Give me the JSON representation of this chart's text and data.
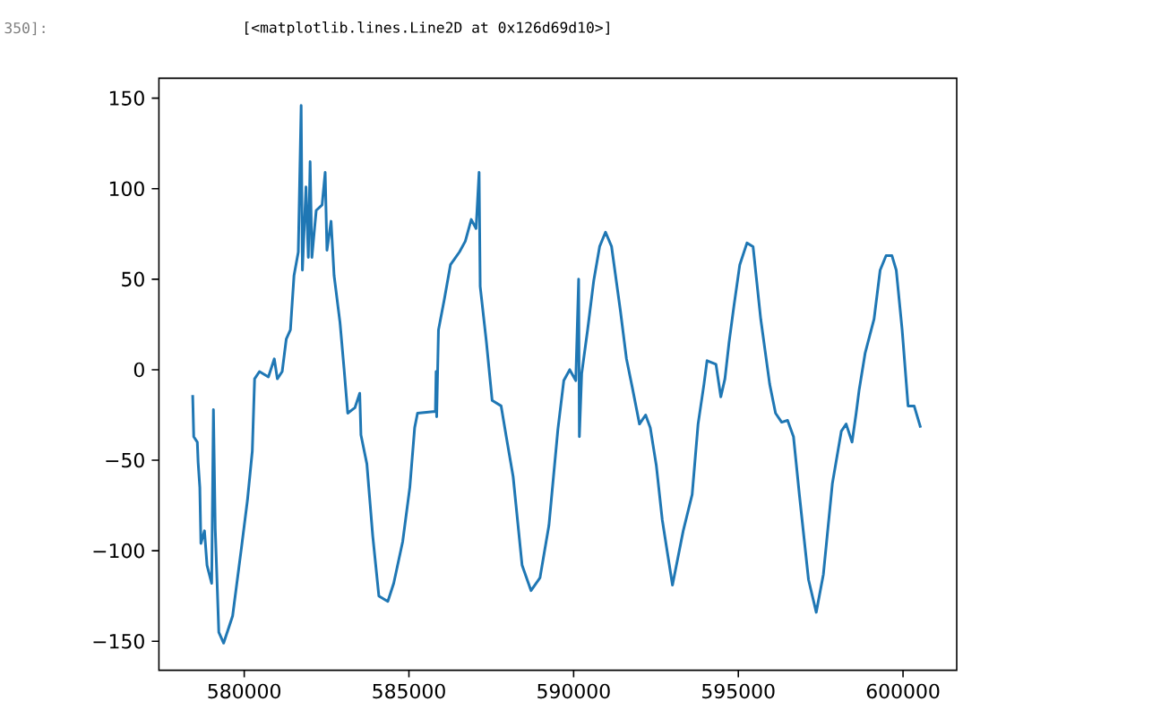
{
  "chart_data": {
    "type": "line",
    "color": "#1f77b4",
    "annotations": [
      "350]:",
      "[<matplotlib.lines.Line2D at 0x126d69d10>]"
    ],
    "xlim": [
      577410,
      601630
    ],
    "ylim": [
      -166,
      161
    ],
    "xticks": [
      580000,
      585000,
      590000,
      595000,
      600000
    ],
    "yticks": [
      {
        "value": -150,
        "label": "−150"
      },
      {
        "value": -100,
        "label": "−100"
      },
      {
        "value": -50,
        "label": "−50"
      },
      0,
      50,
      100,
      150
    ],
    "x": [
      578435,
      578467,
      578576,
      578600,
      578652,
      578685,
      578793,
      578870,
      579011,
      579065,
      579120,
      579228,
      579375,
      579647,
      579918,
      580098,
      580245,
      580315,
      580462,
      580734,
      580913,
      581005,
      581152,
      581277,
      581402,
      581511,
      581641,
      581728,
      581766,
      581875,
      581946,
      582000,
      582054,
      582185,
      582364,
      582457,
      582511,
      582636,
      582728,
      582908,
      583033,
      583142,
      583359,
      583506,
      583543,
      583723,
      583902,
      584087,
      584359,
      584538,
      584810,
      585027,
      585174,
      585261,
      585804,
      585825,
      585842,
      585897,
      586076,
      586261,
      586533,
      586712,
      586892,
      587038,
      587130,
      587163,
      587348,
      587527,
      587799,
      587946,
      588163,
      588435,
      588707,
      588978,
      589250,
      589522,
      589701,
      589881,
      590065,
      590152,
      590174,
      590245,
      590424,
      590609,
      590789,
      590968,
      591152,
      591424,
      591604,
      591783,
      591999,
      592185,
      592327,
      592511,
      592691,
      593001,
      593327,
      593598,
      593778,
      593957,
      594050,
      594321,
      594468,
      594593,
      594718,
      594865,
      595044,
      595262,
      595447,
      595680,
      595952,
      596130,
      596316,
      596495,
      596675,
      596859,
      597131,
      597365,
      597582,
      597854,
      598126,
      598273,
      598452,
      598577,
      598669,
      598848,
      599120,
      599305,
      599485,
      599664,
      599794,
      599973,
      600153,
      600338,
      600533
    ],
    "values": [
      -14,
      -37,
      -40,
      -51,
      -65,
      -96,
      -89,
      -108,
      -118,
      -22,
      -88,
      -145,
      -151,
      -136,
      -98,
      -72,
      -45,
      -5,
      -1,
      -4,
      6,
      -5,
      -1,
      17,
      22,
      52,
      65,
      146,
      55,
      101,
      62,
      115,
      62,
      88,
      91,
      109,
      66,
      82,
      52,
      26,
      0,
      -24,
      -21,
      -13,
      -36,
      -52,
      -92,
      -125,
      -128,
      -118,
      -95,
      -65,
      -32,
      -24,
      -23,
      -1,
      -26,
      22,
      39,
      58,
      65,
      71,
      83,
      78,
      109,
      46,
      16,
      -17,
      -20,
      -36,
      -59,
      -108,
      -122,
      -115,
      -86,
      -33,
      -6,
      0,
      -6,
      50,
      -37,
      -2,
      22,
      49,
      68,
      76,
      68,
      32,
      6,
      -10,
      -30,
      -25,
      -32,
      -53,
      -83,
      -119,
      -89,
      -69,
      -30,
      -8,
      5,
      3,
      -15,
      -5,
      15,
      35,
      58,
      70,
      68,
      28,
      -8,
      -24,
      -29,
      -28,
      -37,
      -70,
      -116,
      -134,
      -113,
      -63,
      -34,
      -30,
      -40,
      -24,
      -11,
      9,
      28,
      55,
      63,
      63,
      55,
      22,
      -20,
      -20,
      -32
    ]
  }
}
